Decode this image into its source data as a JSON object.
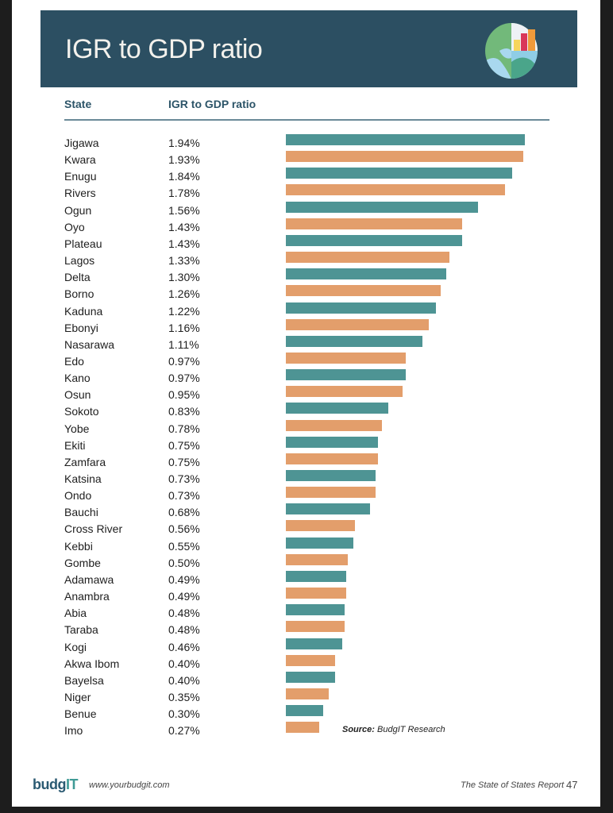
{
  "header": {
    "title": "IGR to GDP ratio",
    "icon": "globe-chart-icon"
  },
  "columns": {
    "state": "State",
    "ratio": "IGR to GDP ratio"
  },
  "colors": {
    "teal": "#4e9494",
    "orange": "#e39e6b",
    "banner": "#2c4f62"
  },
  "chart_data": {
    "type": "bar",
    "orientation": "horizontal",
    "title": "IGR to GDP ratio",
    "xlabel": "",
    "ylabel": "State",
    "xlim": [
      0,
      1.94
    ],
    "unit": "%",
    "categories": [
      "Jigawa",
      "Kwara",
      "Enugu",
      "Rivers",
      "Ogun",
      "Oyo",
      "Plateau",
      "Lagos",
      "Delta",
      "Borno",
      "Kaduna",
      "Ebonyi",
      "Nasarawa",
      "Edo",
      "Kano",
      "Osun",
      "Sokoto",
      "Yobe",
      "Ekiti",
      "Zamfara",
      "Katsina",
      "Ondo",
      "Bauchi",
      "Cross River",
      "Kebbi",
      "Gombe",
      "Adamawa",
      "Anambra",
      "Abia",
      "Taraba",
      "Kogi",
      "Akwa Ibom",
      "Bayelsa",
      "Niger",
      "Benue",
      "Imo"
    ],
    "values": [
      1.94,
      1.93,
      1.84,
      1.78,
      1.56,
      1.43,
      1.43,
      1.33,
      1.3,
      1.26,
      1.22,
      1.16,
      1.11,
      0.97,
      0.97,
      0.95,
      0.83,
      0.78,
      0.75,
      0.75,
      0.73,
      0.73,
      0.68,
      0.56,
      0.55,
      0.5,
      0.49,
      0.49,
      0.48,
      0.48,
      0.46,
      0.4,
      0.4,
      0.35,
      0.3,
      0.27
    ],
    "labels": [
      "1.94%",
      "1.93%",
      "1.84%",
      "1.78%",
      "1.56%",
      "1.43%",
      "1.43%",
      "1.33%",
      "1.30%",
      "1.26%",
      "1.22%",
      "1.16%",
      "1.11%",
      "0.97%",
      "0.97%",
      "0.95%",
      "0.83%",
      "0.78%",
      "0.75%",
      "0.75%",
      "0.73%",
      "0.73%",
      "0.68%",
      "0.56%",
      "0.55%",
      "0.50%",
      "0.49%",
      "0.49%",
      "0.48%",
      "0.48%",
      "0.46%",
      "0.40%",
      "0.40%",
      "0.35%",
      "0.30%",
      "0.27%"
    ],
    "bar_colors": "alternating teal/orange",
    "grid": false,
    "legend": "none"
  },
  "source": {
    "label": "Source:",
    "text": " BudgIT Research"
  },
  "footer": {
    "logo_main": "budg",
    "logo_accent": "IT",
    "url": "www.yourbudgit.com",
    "report": "The State of States Report",
    "page": "47"
  }
}
